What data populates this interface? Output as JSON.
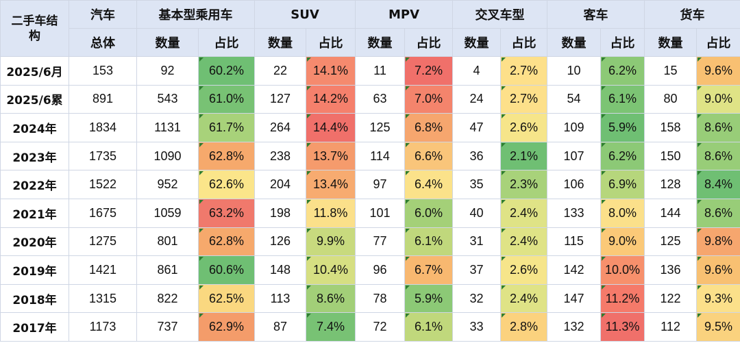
{
  "header": {
    "corner": "二手车结构",
    "groups": [
      "汽车",
      "基本型乘用车",
      "SUV",
      "MPV",
      "交叉车型",
      "客车",
      "货车"
    ],
    "sub": [
      "总体",
      "数量",
      "占比",
      "数量",
      "占比",
      "数量",
      "占比",
      "数量",
      "占比",
      "数量",
      "占比",
      "数量",
      "占比"
    ]
  },
  "rows": [
    {
      "label": "2025/6月",
      "total": "153",
      "basic_n": "92",
      "basic_p": "60.2%",
      "suv_n": "22",
      "suv_p": "14.1%",
      "mpv_n": "11",
      "mpv_p": "7.2%",
      "cross_n": "4",
      "cross_p": "2.7%",
      "bus_n": "10",
      "bus_p": "6.2%",
      "truck_n": "15",
      "truck_p": "9.6%"
    },
    {
      "label": "2025/6累",
      "total": "891",
      "basic_n": "543",
      "basic_p": "61.0%",
      "suv_n": "127",
      "suv_p": "14.2%",
      "mpv_n": "63",
      "mpv_p": "7.0%",
      "cross_n": "24",
      "cross_p": "2.7%",
      "bus_n": "54",
      "bus_p": "6.1%",
      "truck_n": "80",
      "truck_p": "9.0%"
    },
    {
      "label": "2024年",
      "total": "1834",
      "basic_n": "1131",
      "basic_p": "61.7%",
      "suv_n": "264",
      "suv_p": "14.4%",
      "mpv_n": "125",
      "mpv_p": "6.8%",
      "cross_n": "47",
      "cross_p": "2.6%",
      "bus_n": "109",
      "bus_p": "5.9%",
      "truck_n": "158",
      "truck_p": "8.6%"
    },
    {
      "label": "2023年",
      "total": "1735",
      "basic_n": "1090",
      "basic_p": "62.8%",
      "suv_n": "238",
      "suv_p": "13.7%",
      "mpv_n": "114",
      "mpv_p": "6.6%",
      "cross_n": "36",
      "cross_p": "2.1%",
      "bus_n": "107",
      "bus_p": "6.2%",
      "truck_n": "150",
      "truck_p": "8.6%"
    },
    {
      "label": "2022年",
      "total": "1522",
      "basic_n": "952",
      "basic_p": "62.6%",
      "suv_n": "204",
      "suv_p": "13.4%",
      "mpv_n": "97",
      "mpv_p": "6.4%",
      "cross_n": "35",
      "cross_p": "2.3%",
      "bus_n": "106",
      "bus_p": "6.9%",
      "truck_n": "128",
      "truck_p": "8.4%"
    },
    {
      "label": "2021年",
      "total": "1675",
      "basic_n": "1059",
      "basic_p": "63.2%",
      "suv_n": "198",
      "suv_p": "11.8%",
      "mpv_n": "101",
      "mpv_p": "6.0%",
      "cross_n": "40",
      "cross_p": "2.4%",
      "bus_n": "133",
      "bus_p": "8.0%",
      "truck_n": "144",
      "truck_p": "8.6%"
    },
    {
      "label": "2020年",
      "total": "1275",
      "basic_n": "801",
      "basic_p": "62.8%",
      "suv_n": "126",
      "suv_p": "9.9%",
      "mpv_n": "77",
      "mpv_p": "6.1%",
      "cross_n": "31",
      "cross_p": "2.4%",
      "bus_n": "115",
      "bus_p": "9.0%",
      "truck_n": "125",
      "truck_p": "9.8%"
    },
    {
      "label": "2019年",
      "total": "1421",
      "basic_n": "861",
      "basic_p": "60.6%",
      "suv_n": "148",
      "suv_p": "10.4%",
      "mpv_n": "96",
      "mpv_p": "6.7%",
      "cross_n": "37",
      "cross_p": "2.6%",
      "bus_n": "142",
      "bus_p": "10.0%",
      "truck_n": "136",
      "truck_p": "9.6%"
    },
    {
      "label": "2018年",
      "total": "1315",
      "basic_n": "822",
      "basic_p": "62.5%",
      "suv_n": "113",
      "suv_p": "8.6%",
      "mpv_n": "78",
      "mpv_p": "5.9%",
      "cross_n": "32",
      "cross_p": "2.4%",
      "bus_n": "147",
      "bus_p": "11.2%",
      "truck_n": "122",
      "truck_p": "9.3%"
    },
    {
      "label": "2017年",
      "total": "1173",
      "basic_n": "737",
      "basic_p": "62.9%",
      "suv_n": "87",
      "suv_p": "7.4%",
      "mpv_n": "72",
      "mpv_p": "6.1%",
      "cross_n": "33",
      "cross_p": "2.8%",
      "bus_n": "132",
      "bus_p": "11.3%",
      "truck_n": "112",
      "truck_p": "9.5%"
    }
  ],
  "colors": {
    "basic_p": [
      "#6fbf73",
      "#78c274",
      "#a8d27a",
      "#f6a96c",
      "#fbe58a",
      "#f0796c",
      "#f6a96c",
      "#6fbf73",
      "#fad880",
      "#f49c6a"
    ],
    "suv_p": [
      "#f58a6e",
      "#f5806c",
      "#f0706a",
      "#f59b6c",
      "#f7ab70",
      "#fbe08a",
      "#c8da7e",
      "#d6df82",
      "#a2cf78",
      "#78c274"
    ],
    "mpv_p": [
      "#f0706a",
      "#f4846c",
      "#f6a66e",
      "#f9c57a",
      "#fbe28a",
      "#a4d078",
      "#c0d87c",
      "#f8b870",
      "#8cc976",
      "#c0d87c"
    ],
    "cross_p": [
      "#fde08a",
      "#fde08a",
      "#f6e58a",
      "#6fbf73",
      "#a8d27a",
      "#dfe386",
      "#dfe386",
      "#f6e58a",
      "#dfe386",
      "#fbd27e"
    ],
    "bus_p": [
      "#8cc976",
      "#7cc474",
      "#6fbf73",
      "#8cc976",
      "#b6d67c",
      "#fbe08a",
      "#fbc978",
      "#f7906c",
      "#f57a6a",
      "#f0706a"
    ],
    "truck_p": [
      "#f8c072",
      "#dfe386",
      "#98cd78",
      "#98cd78",
      "#6fbf73",
      "#98cd78",
      "#f6a66e",
      "#f8c072",
      "#fbe08a",
      "#fad27e"
    ]
  }
}
